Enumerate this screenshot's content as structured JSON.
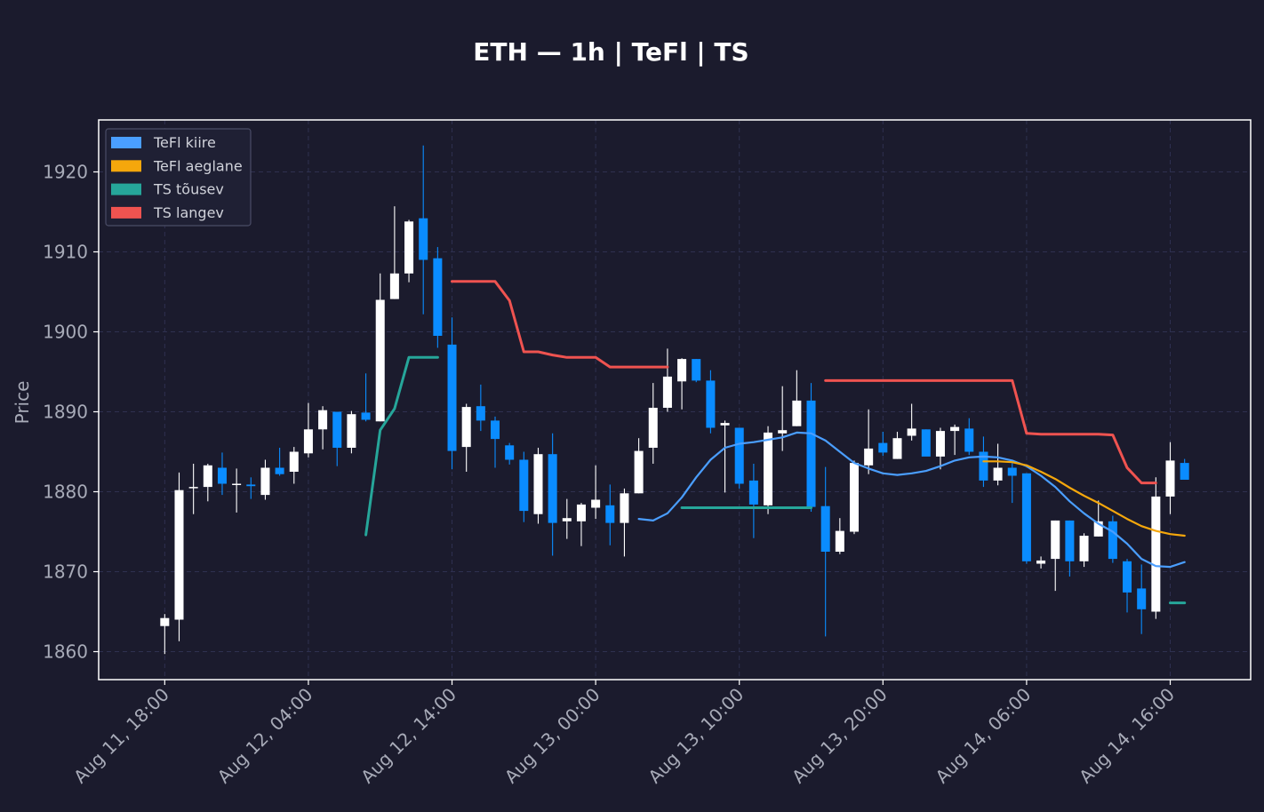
{
  "chart_data": {
    "type": "candlestick",
    "title": "ETH — 1h  |  TeFl  |  TS",
    "ylabel": "Price",
    "xlabel": "",
    "ylim": [
      1856.5,
      1926.5
    ],
    "yticks": [
      1860,
      1870,
      1880,
      1890,
      1900,
      1910,
      1920
    ],
    "xlim": [
      -4.6,
      75.6
    ],
    "xticks": [
      {
        "label": "Aug 11, 18:00",
        "x": 0
      },
      {
        "label": "Aug 12, 04:00",
        "x": 10
      },
      {
        "label": "Aug 12, 14:00",
        "x": 20
      },
      {
        "label": "Aug 13, 00:00",
        "x": 30
      },
      {
        "label": "Aug 13, 10:00",
        "x": 40
      },
      {
        "label": "Aug 13, 20:00",
        "x": 50
      },
      {
        "label": "Aug 14, 06:00",
        "x": 60
      },
      {
        "label": "Aug 14, 16:00",
        "x": 70
      }
    ],
    "grid": true,
    "legend_position": "top-left",
    "candle_colors": {
      "up": "#ffffff",
      "down": "#0a8cff"
    },
    "candles": [
      [
        1863.2,
        1864.7,
        1859.7,
        1864.2
      ],
      [
        1864.0,
        1882.4,
        1861.3,
        1880.2
      ],
      [
        1880.6,
        1883.5,
        1877.2,
        1880.6
      ],
      [
        1880.6,
        1883.5,
        1878.8,
        1883.3
      ],
      [
        1883.0,
        1884.9,
        1879.6,
        1881.0
      ],
      [
        1880.9,
        1882.9,
        1877.4,
        1881.0
      ],
      [
        1880.9,
        1881.8,
        1879.1,
        1880.7
      ],
      [
        1879.6,
        1884.0,
        1879.0,
        1883.0
      ],
      [
        1883.0,
        1885.5,
        1882.0,
        1882.2
      ],
      [
        1882.5,
        1885.6,
        1881.0,
        1885.0
      ],
      [
        1884.8,
        1891.1,
        1884.3,
        1887.8
      ],
      [
        1887.8,
        1890.7,
        1885.3,
        1890.2
      ],
      [
        1890.0,
        1890.0,
        1883.2,
        1885.5
      ],
      [
        1885.5,
        1890.1,
        1884.8,
        1889.7
      ],
      [
        1889.9,
        1894.8,
        1888.8,
        1889.0
      ],
      [
        1888.8,
        1907.3,
        1888.8,
        1904.0
      ],
      [
        1904.1,
        1915.7,
        1904.1,
        1907.3
      ],
      [
        1907.3,
        1914.0,
        1906.2,
        1913.8
      ],
      [
        1914.2,
        1923.3,
        1902.2,
        1909.0
      ],
      [
        1909.2,
        1910.6,
        1898.0,
        1899.5
      ],
      [
        1898.4,
        1901.8,
        1882.8,
        1885.1
      ],
      [
        1885.6,
        1891.0,
        1882.5,
        1890.6
      ],
      [
        1890.7,
        1893.4,
        1887.6,
        1888.9
      ],
      [
        1888.9,
        1889.4,
        1883.0,
        1886.6
      ],
      [
        1885.8,
        1886.1,
        1883.4,
        1884.0
      ],
      [
        1884.0,
        1885.0,
        1876.2,
        1877.6
      ],
      [
        1877.2,
        1885.5,
        1876.0,
        1884.7
      ],
      [
        1884.7,
        1887.3,
        1872.0,
        1876.1
      ],
      [
        1876.3,
        1879.1,
        1874.1,
        1876.7
      ],
      [
        1876.3,
        1878.6,
        1873.2,
        1878.4
      ],
      [
        1878.0,
        1883.3,
        1876.6,
        1879.0
      ],
      [
        1878.3,
        1880.9,
        1873.3,
        1876.1
      ],
      [
        1876.1,
        1880.4,
        1871.9,
        1879.8
      ],
      [
        1879.8,
        1886.7,
        1879.8,
        1885.1
      ],
      [
        1885.5,
        1893.6,
        1883.5,
        1890.5
      ],
      [
        1890.5,
        1897.9,
        1890.0,
        1894.4
      ],
      [
        1893.8,
        1896.7,
        1890.3,
        1896.6
      ],
      [
        1896.6,
        1896.6,
        1893.7,
        1893.9
      ],
      [
        1893.9,
        1895.2,
        1887.3,
        1888.0
      ],
      [
        1888.3,
        1888.9,
        1879.9,
        1888.6
      ],
      [
        1888.0,
        1888.0,
        1880.4,
        1881.0
      ],
      [
        1881.4,
        1883.5,
        1874.2,
        1878.4
      ],
      [
        1878.3,
        1888.2,
        1877.2,
        1887.4
      ],
      [
        1887.3,
        1893.2,
        1885.1,
        1887.7
      ],
      [
        1888.2,
        1895.2,
        1888.2,
        1891.4
      ],
      [
        1891.4,
        1893.6,
        1877.5,
        1878.1
      ],
      [
        1878.2,
        1883.1,
        1861.9,
        1872.5
      ],
      [
        1872.5,
        1876.7,
        1872.2,
        1875.1
      ],
      [
        1875.0,
        1883.9,
        1874.7,
        1883.6
      ],
      [
        1883.3,
        1890.3,
        1882.2,
        1885.4
      ],
      [
        1886.1,
        1887.5,
        1884.5,
        1884.9
      ],
      [
        1884.1,
        1887.5,
        1884.1,
        1886.7
      ],
      [
        1887.0,
        1891.0,
        1886.4,
        1887.9
      ],
      [
        1887.8,
        1887.8,
        1885.0,
        1884.4
      ],
      [
        1884.4,
        1888.0,
        1882.8,
        1887.6
      ],
      [
        1887.6,
        1888.4,
        1884.6,
        1888.1
      ],
      [
        1887.9,
        1889.2,
        1884.6,
        1885.0
      ],
      [
        1885.0,
        1886.9,
        1880.6,
        1881.4
      ],
      [
        1881.4,
        1886.0,
        1880.8,
        1883.0
      ],
      [
        1883.0,
        1883.6,
        1878.6,
        1882.0
      ],
      [
        1882.3,
        1882.3,
        1871.0,
        1871.3
      ],
      [
        1871.0,
        1871.9,
        1870.4,
        1871.4
      ],
      [
        1871.6,
        1876.4,
        1867.6,
        1876.4
      ],
      [
        1876.4,
        1876.4,
        1869.4,
        1871.3
      ],
      [
        1871.3,
        1874.8,
        1870.6,
        1874.5
      ],
      [
        1874.4,
        1878.9,
        1874.4,
        1876.3
      ],
      [
        1876.3,
        1877.0,
        1871.1,
        1871.6
      ],
      [
        1871.3,
        1871.6,
        1864.9,
        1867.4
      ],
      [
        1867.9,
        1870.9,
        1862.2,
        1865.3
      ],
      [
        1865.0,
        1881.8,
        1864.1,
        1879.4
      ],
      [
        1879.4,
        1886.2,
        1877.2,
        1883.9
      ],
      [
        1883.6,
        1884.1,
        1881.5,
        1881.5
      ]
    ],
    "series": [
      {
        "name": "TeFl kiire",
        "color": "#4a9eff",
        "x": [
          33,
          34,
          35,
          36,
          37,
          38,
          39,
          40,
          41,
          42,
          43,
          44,
          45,
          46,
          47,
          48,
          49,
          50,
          51,
          52,
          53,
          54,
          55,
          56,
          57,
          58,
          59,
          60,
          61,
          62,
          63,
          64,
          65,
          66,
          67,
          68,
          69,
          70,
          71
        ],
        "y": [
          1876.6,
          1876.4,
          1877.3,
          1879.3,
          1881.8,
          1884.0,
          1885.5,
          1886.0,
          1886.2,
          1886.5,
          1886.8,
          1887.4,
          1887.3,
          1886.4,
          1885.0,
          1883.6,
          1882.9,
          1882.3,
          1882.1,
          1882.3,
          1882.6,
          1883.2,
          1883.9,
          1884.3,
          1884.4,
          1884.3,
          1883.9,
          1883.2,
          1882.0,
          1880.6,
          1878.8,
          1877.3,
          1876.0,
          1875.0,
          1873.5,
          1871.6,
          1870.7,
          1870.6,
          1871.2
        ]
      },
      {
        "name": "TeFl aeglane",
        "color": "#f5a70c",
        "x": [
          57,
          58,
          59,
          60,
          61,
          62,
          63,
          64,
          65,
          66,
          67,
          68,
          69,
          70,
          71
        ],
        "y": [
          1883.8,
          1883.8,
          1883.7,
          1883.3,
          1882.5,
          1881.6,
          1880.5,
          1879.5,
          1878.6,
          1877.6,
          1876.6,
          1875.7,
          1875.1,
          1874.7,
          1874.5
        ]
      },
      {
        "name": "TS tõusev",
        "color": "#26a69a",
        "segments": [
          {
            "x": [
              14,
              15,
              16,
              17,
              18,
              19
            ],
            "y": [
              1874.6,
              1887.7,
              1890.4,
              1896.8,
              1896.8,
              1896.8
            ]
          },
          {
            "x": [
              36,
              37,
              38,
              39,
              40,
              41,
              42,
              43,
              44,
              45
            ],
            "y": [
              1878.0,
              1878.0,
              1878.0,
              1878.0,
              1878.0,
              1878.0,
              1878.0,
              1878.0,
              1878.0,
              1878.0
            ]
          },
          {
            "x": [
              70,
              71
            ],
            "y": [
              1866.1,
              1866.1
            ]
          }
        ]
      },
      {
        "name": "TS langev",
        "color": "#ef5350",
        "segments": [
          {
            "x": [
              20,
              21,
              22,
              23,
              24,
              25,
              26,
              27,
              28,
              29,
              30,
              31,
              32,
              33,
              34,
              35
            ],
            "y": [
              1906.3,
              1906.3,
              1906.3,
              1906.3,
              1903.9,
              1897.5,
              1897.5,
              1897.1,
              1896.8,
              1896.8,
              1896.8,
              1895.6,
              1895.6,
              1895.6,
              1895.6,
              1895.6
            ]
          },
          {
            "x": [
              46,
              47,
              48,
              49,
              50,
              51,
              52,
              53,
              54,
              55,
              56,
              57,
              58,
              59,
              60,
              61,
              62,
              63,
              64,
              65,
              66,
              67,
              68,
              69
            ],
            "y": [
              1893.9,
              1893.9,
              1893.9,
              1893.9,
              1893.9,
              1893.9,
              1893.9,
              1893.9,
              1893.9,
              1893.9,
              1893.9,
              1893.9,
              1893.9,
              1893.9,
              1887.3,
              1887.2,
              1887.2,
              1887.2,
              1887.2,
              1887.2,
              1887.1,
              1883.0,
              1881.1,
              1881.1
            ]
          }
        ]
      }
    ],
    "legend": [
      "TeFl kiire",
      "TeFl aeglane",
      "TS tõusev",
      "TS langev"
    ]
  },
  "colors": {
    "background": "#1b1b2d",
    "axes_frame": "#ffffff",
    "grid": "#2f3150",
    "tick_text": "#a8abb8",
    "legend_bg": "#1f2034",
    "legend_border": "#4a4c66"
  }
}
